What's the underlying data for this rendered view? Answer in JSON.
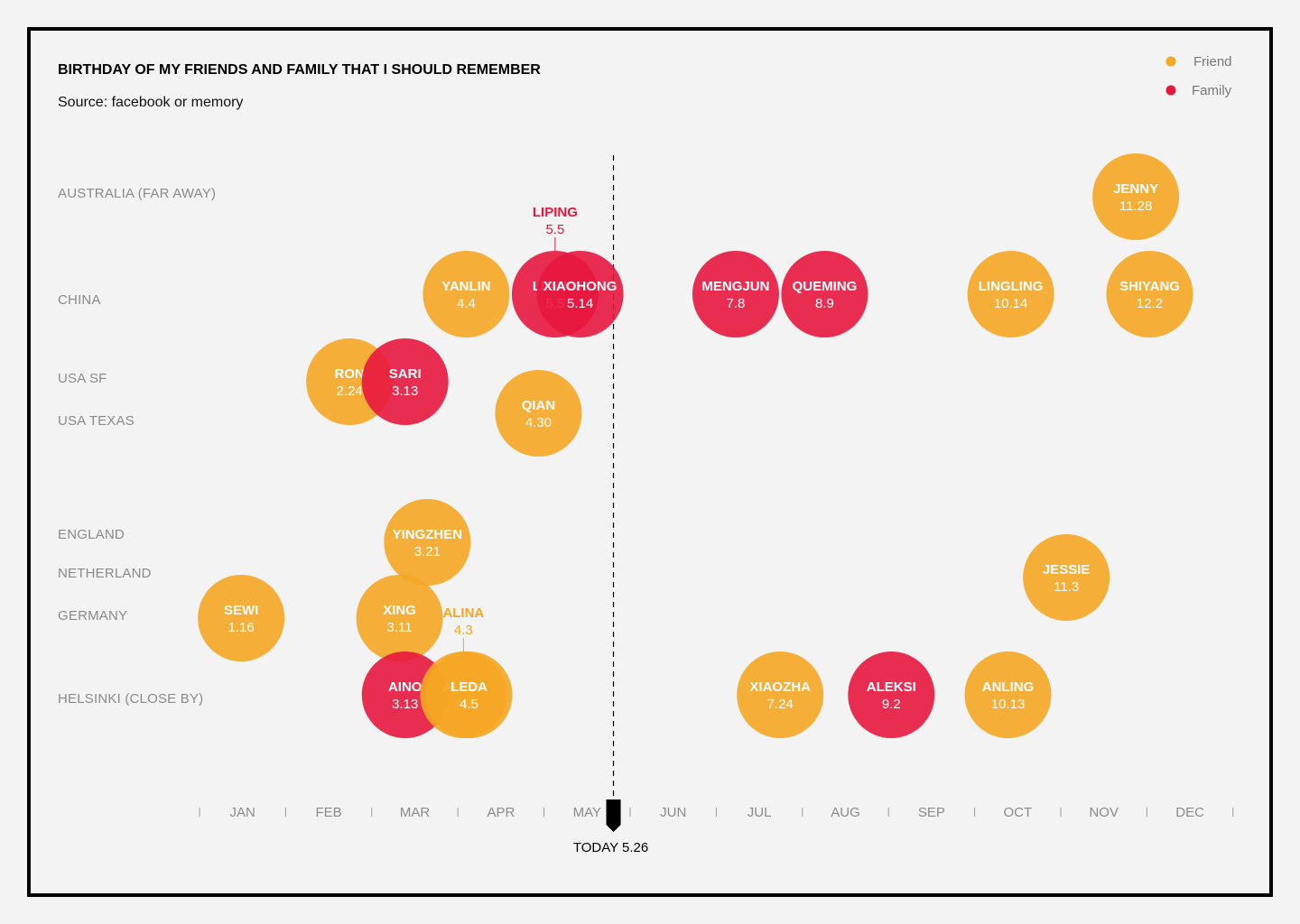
{
  "chart_data": {
    "type": "scatter",
    "title": "BIRTHDAY OF MY FRIENDS AND FAMILY THAT I SHOULD REMEMBER",
    "subtitle": "Source: facebook or memory",
    "legend": {
      "placement": "top-right",
      "items": [
        {
          "label": "Friend",
          "color": "#f5a623"
        },
        {
          "label": "Family",
          "color": "#e8173f"
        }
      ]
    },
    "colors": {
      "friend": "#f5a623",
      "family": "#e8173f",
      "background": "#f3f3f3"
    },
    "x_axis": {
      "months": [
        "JAN",
        "FEB",
        "MAR",
        "APR",
        "MAY",
        "JUN",
        "JUL",
        "AUG",
        "SEP",
        "OCT",
        "NOV",
        "DEC"
      ],
      "range": [
        1,
        13
      ]
    },
    "rows": [
      "AUSTRALIA (FAR AWAY)",
      "CHINA",
      "USA SF",
      "USA TEXAS",
      "ENGLAND",
      "NETHERLAND",
      "GERMANY",
      "HELSINKI (CLOSE BY)"
    ],
    "today": {
      "label": "TODAY 5.26",
      "month": 5,
      "day": 26
    },
    "points": [
      {
        "name": "JENNY",
        "date": "11.28",
        "month": 11,
        "day": 28,
        "row": "AUSTRALIA (FAR AWAY)",
        "group": "friend"
      },
      {
        "name": "YANLIN",
        "date": "4.4",
        "month": 4,
        "day": 4,
        "row": "CHINA",
        "group": "friend"
      },
      {
        "name": "LIPING",
        "date": "5.5",
        "month": 5,
        "day": 5,
        "row": "CHINA",
        "group": "family",
        "callout": true
      },
      {
        "name": "XIAOHONG",
        "date": "5.14",
        "month": 5,
        "day": 14,
        "row": "CHINA",
        "group": "family"
      },
      {
        "name": "MENGJUN",
        "date": "7.8",
        "month": 7,
        "day": 8,
        "row": "CHINA",
        "group": "family"
      },
      {
        "name": "QUEMING",
        "date": "8.9",
        "month": 8,
        "day": 9,
        "row": "CHINA",
        "group": "family"
      },
      {
        "name": "LINGLING",
        "date": "10.14",
        "month": 10,
        "day": 14,
        "row": "CHINA",
        "group": "friend"
      },
      {
        "name": "SHIYANG",
        "date": "12.2",
        "month": 12,
        "day": 2,
        "row": "CHINA",
        "group": "friend"
      },
      {
        "name": "RON",
        "date": "2.24",
        "month": 2,
        "day": 24,
        "row": "USA SF",
        "group": "friend"
      },
      {
        "name": "SARI",
        "date": "3.13",
        "month": 3,
        "day": 13,
        "row": "USA SF",
        "group": "family"
      },
      {
        "name": "QIAN",
        "date": "4.30",
        "month": 4,
        "day": 30,
        "row": "USA TEXAS",
        "group": "friend"
      },
      {
        "name": "YINGZHEN",
        "date": "3.21",
        "month": 3,
        "day": 21,
        "row": "ENGLAND",
        "group": "friend"
      },
      {
        "name": "JESSIE",
        "date": "11.3",
        "month": 11,
        "day": 3,
        "row": "NETHERLAND",
        "group": "friend"
      },
      {
        "name": "SEWI",
        "date": "1.16",
        "month": 1,
        "day": 16,
        "row": "GERMANY",
        "group": "friend"
      },
      {
        "name": "XING",
        "date": "3.11",
        "month": 3,
        "day": 11,
        "row": "GERMANY",
        "group": "friend"
      },
      {
        "name": "AINO",
        "date": "3.13",
        "month": 3,
        "day": 13,
        "row": "HELSINKI (CLOSE BY)",
        "group": "family"
      },
      {
        "name": "ALINA",
        "date": "4.3",
        "month": 4,
        "day": 3,
        "row": "HELSINKI (CLOSE BY)",
        "group": "friend",
        "callout": true
      },
      {
        "name": "LEDA",
        "date": "4.5",
        "month": 4,
        "day": 5,
        "row": "HELSINKI (CLOSE BY)",
        "group": "friend"
      },
      {
        "name": "XIAOZHA",
        "date": "7.24",
        "month": 7,
        "day": 24,
        "row": "HELSINKI (CLOSE BY)",
        "group": "friend"
      },
      {
        "name": "ALEKSI",
        "date": "9.2",
        "month": 9,
        "day": 2,
        "row": "HELSINKI (CLOSE BY)",
        "group": "family"
      },
      {
        "name": "ANLING",
        "date": "10.13",
        "month": 10,
        "day": 13,
        "row": "HELSINKI (CLOSE BY)",
        "group": "friend"
      }
    ]
  }
}
